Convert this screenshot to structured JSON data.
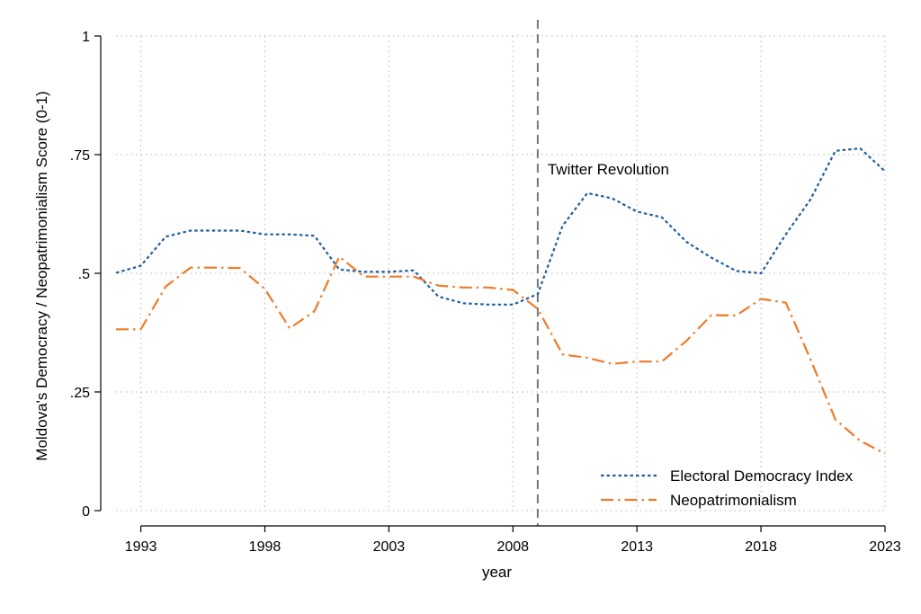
{
  "chart_data": {
    "type": "line",
    "xlabel": "year",
    "ylabel": "Moldova's Democracy / Neopatrimonialism Score (0-1)",
    "xlim": [
      1992,
      2023
    ],
    "ylim": [
      0,
      1
    ],
    "x_ticks": [
      1993,
      1998,
      2003,
      2008,
      2013,
      2018,
      2023
    ],
    "y_ticks": [
      {
        "value": 0,
        "label": "0"
      },
      {
        "value": 0.25,
        "label": ".25"
      },
      {
        "value": 0.5,
        "label": ".5"
      },
      {
        "value": 0.75,
        "label": ".75"
      },
      {
        "value": 1,
        "label": "1"
      }
    ],
    "grid": true,
    "legend_position": "bottom-right",
    "x": [
      1992,
      1993,
      1994,
      1995,
      1996,
      1997,
      1998,
      1999,
      2000,
      2001,
      2002,
      2003,
      2004,
      2005,
      2006,
      2007,
      2008,
      2009,
      2010,
      2011,
      2012,
      2013,
      2014,
      2015,
      2016,
      2017,
      2018,
      2019,
      2020,
      2021,
      2022,
      2023
    ],
    "series": [
      {
        "name": "Electoral Democracy Index",
        "color": "#1f5fa0",
        "style": "dotted",
        "values": [
          0.501,
          0.516,
          0.577,
          0.59,
          0.59,
          0.59,
          0.582,
          0.582,
          0.579,
          0.508,
          0.503,
          0.503,
          0.506,
          0.451,
          0.437,
          0.434,
          0.434,
          0.456,
          0.6,
          0.669,
          0.658,
          0.63,
          0.618,
          0.566,
          0.533,
          0.505,
          0.5,
          0.582,
          0.656,
          0.758,
          0.763,
          0.715
        ]
      },
      {
        "name": "Neopatrimonialism",
        "color": "#f07a28",
        "style": "dash-dot",
        "values": [
          0.382,
          0.382,
          0.472,
          0.512,
          0.512,
          0.511,
          0.467,
          0.384,
          0.42,
          0.535,
          0.493,
          0.493,
          0.493,
          0.474,
          0.47,
          0.47,
          0.465,
          0.425,
          0.329,
          0.322,
          0.309,
          0.314,
          0.314,
          0.358,
          0.412,
          0.411,
          0.446,
          0.438,
          0.318,
          0.192,
          0.147,
          0.12
        ]
      }
    ],
    "annotations": [
      {
        "x": 2009,
        "label": "Twitter Revolution",
        "color": "#777777"
      }
    ]
  }
}
